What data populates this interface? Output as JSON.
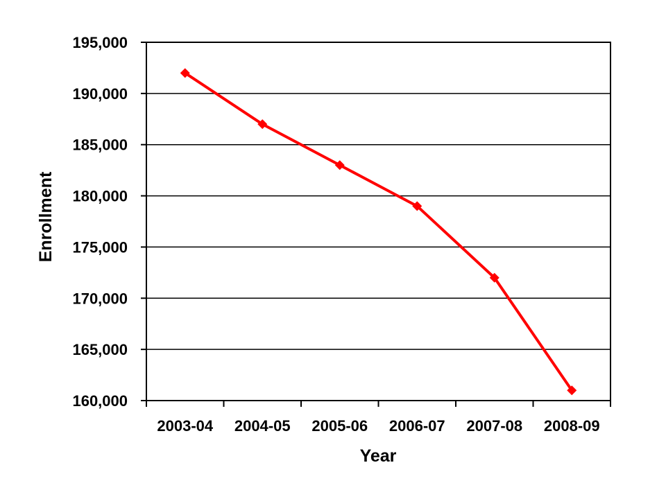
{
  "chart_data": {
    "type": "line",
    "title": "",
    "xlabel": "Year",
    "ylabel": "Enrollment",
    "categories": [
      "2003-04",
      "2004-05",
      "2005-06",
      "2006-07",
      "2007-08",
      "2008-09"
    ],
    "series": [
      {
        "name": "Enrollment",
        "color": "#FF0000",
        "marker": "diamond",
        "values": [
          192000,
          187000,
          183000,
          179000,
          172000,
          161000
        ]
      }
    ],
    "ylim": [
      160000,
      195000
    ],
    "ytick_step": 5000,
    "ytick_labels": [
      "160,000",
      "165,000",
      "170,000",
      "175,000",
      "180,000",
      "185,000",
      "190,000",
      "195,000"
    ],
    "grid": "horizontal",
    "legend": "none"
  },
  "colors": {
    "background": "#FFFFFF",
    "axis": "#000000",
    "grid": "#000000",
    "series": "#FF0000"
  }
}
